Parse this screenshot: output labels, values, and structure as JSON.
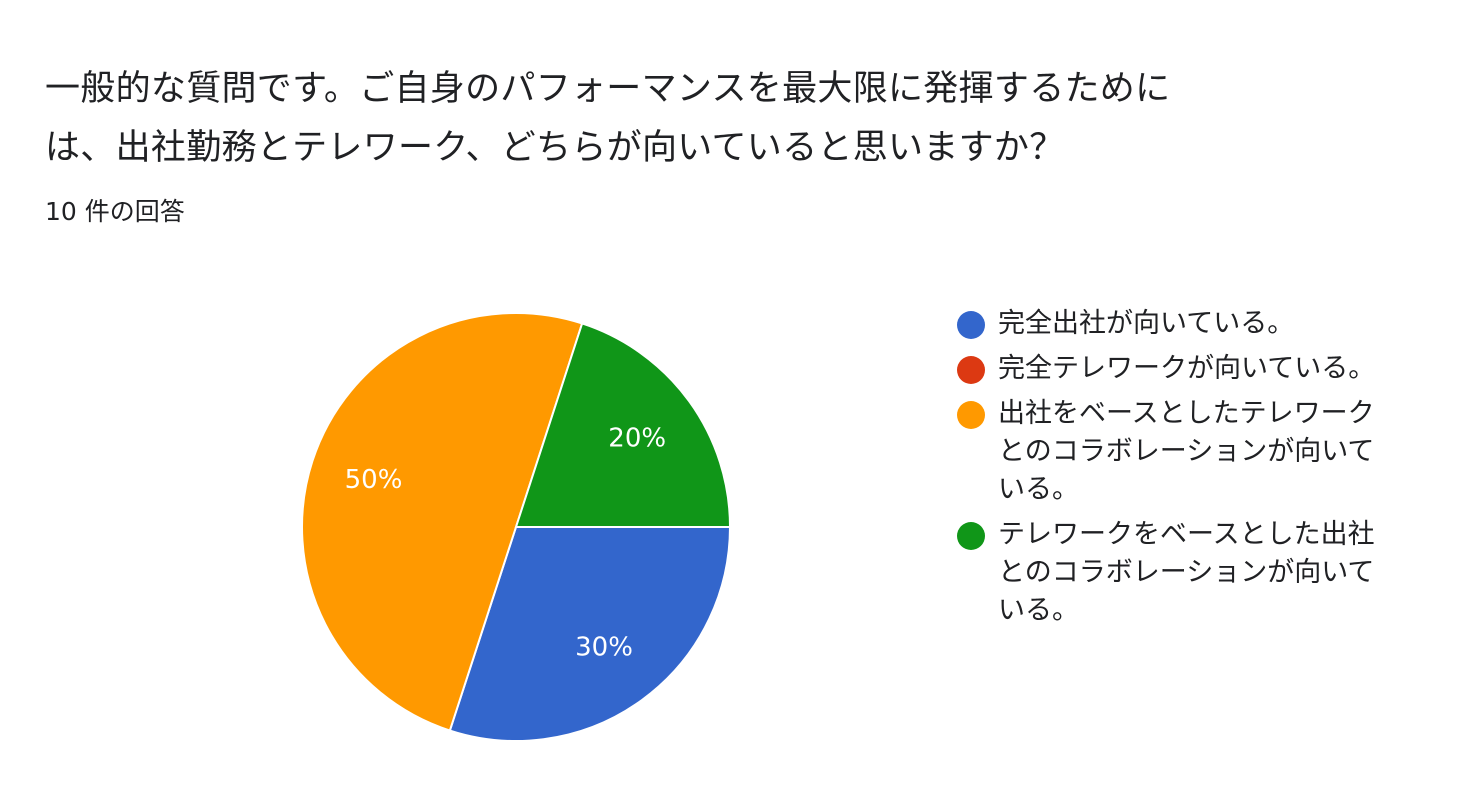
{
  "title": {
    "line1": "一般的な質問です。ご自身のパフォーマンスを最大限に発揮するために",
    "line2": "は、出社勤務とテレワーク、どちらが向いていると思いますか？"
  },
  "subtitle": "10 件の回答",
  "chart_data": {
    "type": "pie",
    "title": "一般的な質問です。ご自身のパフォーマンスを最大限に発揮するためには、出社勤務とテレワーク、どちらが向いていると思いますか？",
    "subtitle": "10 件の回答",
    "legend_position": "right",
    "slices": [
      {
        "label": "完全出社が向いている。",
        "value": 30,
        "display": "30%",
        "color": "#3366cc"
      },
      {
        "label": "完全テレワークが向いている。",
        "value": 0,
        "display": "",
        "color": "#dc3912"
      },
      {
        "label": "出社をベースとしたテレワークとのコラボレーションが向いている。",
        "value": 50,
        "display": "50%",
        "color": "#ff9900"
      },
      {
        "label": "テレワークをベースとした出社とのコラボレーションが向いている。",
        "value": 20,
        "display": "20%",
        "color": "#109618"
      }
    ],
    "legend_lines": [
      [
        "完全出社が向いている。"
      ],
      [
        "完全テレワークが向いている。"
      ],
      [
        "出社をベースとしたテレワーク",
        "とのコラボレーションが向いて",
        "いる。"
      ],
      [
        "テレワークをベースとした出社",
        "とのコラボレーションが向いて",
        "いる。"
      ]
    ]
  }
}
